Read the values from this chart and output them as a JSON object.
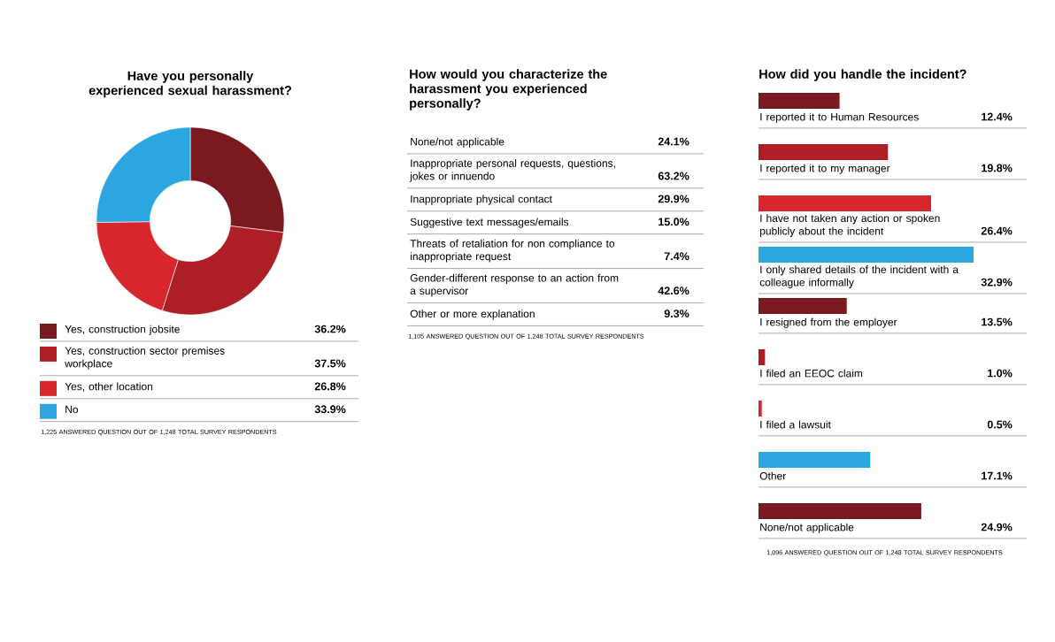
{
  "chart_data": [
    {
      "type": "donut",
      "title": "Have you personally experienced sexual harassment?",
      "categories": [
        "Yes, construction jobsite",
        "Yes, construction sector premises workplace",
        "Yes, other location",
        "No"
      ],
      "values": [
        36.2,
        37.5,
        26.8,
        33.9
      ],
      "value_labels": [
        "36.2%",
        "37.5%",
        "26.8%",
        "33.9%"
      ],
      "colors": [
        "#7a1a1f",
        "#ae1f25",
        "#d8262d",
        "#2ba6de"
      ],
      "legend": "bottom",
      "annotations": [
        "1,225 ANSWERED QUESTION OUT OF 1,248 TOTAL SURVEY RESPONDENTS"
      ]
    },
    {
      "type": "other",
      "title": "How would you characterize the harassment you experienced personally?",
      "categories": [
        "None/not applicable",
        "Inappropriate personal requests, questions, jokes or innuendo",
        "Inappropriate physical contact",
        "Suggestive text messages/emails",
        "Threats of retaliation for non compliance to inappropriate request",
        "Gender-different response to an action from a supervisor",
        "Other or more explanation"
      ],
      "value_labels": [
        "24.1%",
        "63.2%",
        "29.9%",
        "15.0%",
        "7.4%",
        "42.6%",
        "9.3%"
      ],
      "annotations": [
        "1,105 ANSWERED QUESTION OUT OF 1,248 TOTAL SURVEY RESPONDENTS"
      ]
    },
    {
      "type": "bar",
      "orientation": "horizontal",
      "title": "How did you handle the incident?",
      "categories": [
        "I reported it to Human Resources",
        "I reported it to my manager",
        "I have not taken any action or spoken publicly about the incident",
        "I only shared details of the incident with a colleague informally",
        "I resigned from the employer",
        "I filed an EEOC claim",
        "I filed a lawsuit",
        "Other",
        "None/not applicable"
      ],
      "values": [
        12.4,
        19.8,
        26.4,
        32.9,
        13.5,
        1.0,
        0.5,
        17.1,
        24.9
      ],
      "value_labels": [
        "12.4%",
        "19.8%",
        "26.4%",
        "32.9%",
        "13.5%",
        "1.0%",
        "0.5%",
        "17.1%",
        "24.9%"
      ],
      "colors": [
        "#7a1a1f",
        "#ae1f25",
        "#d8262d",
        "#2ba6de",
        "#7a1a1f",
        "#ae1f25",
        "#d8262d",
        "#2ba6de",
        "#7a1a1f"
      ],
      "annotations": [
        "1,096 ANSWERED QUESTION OUT OF 1,248 TOTAL SURVEY RESPONDENTS"
      ]
    }
  ]
}
